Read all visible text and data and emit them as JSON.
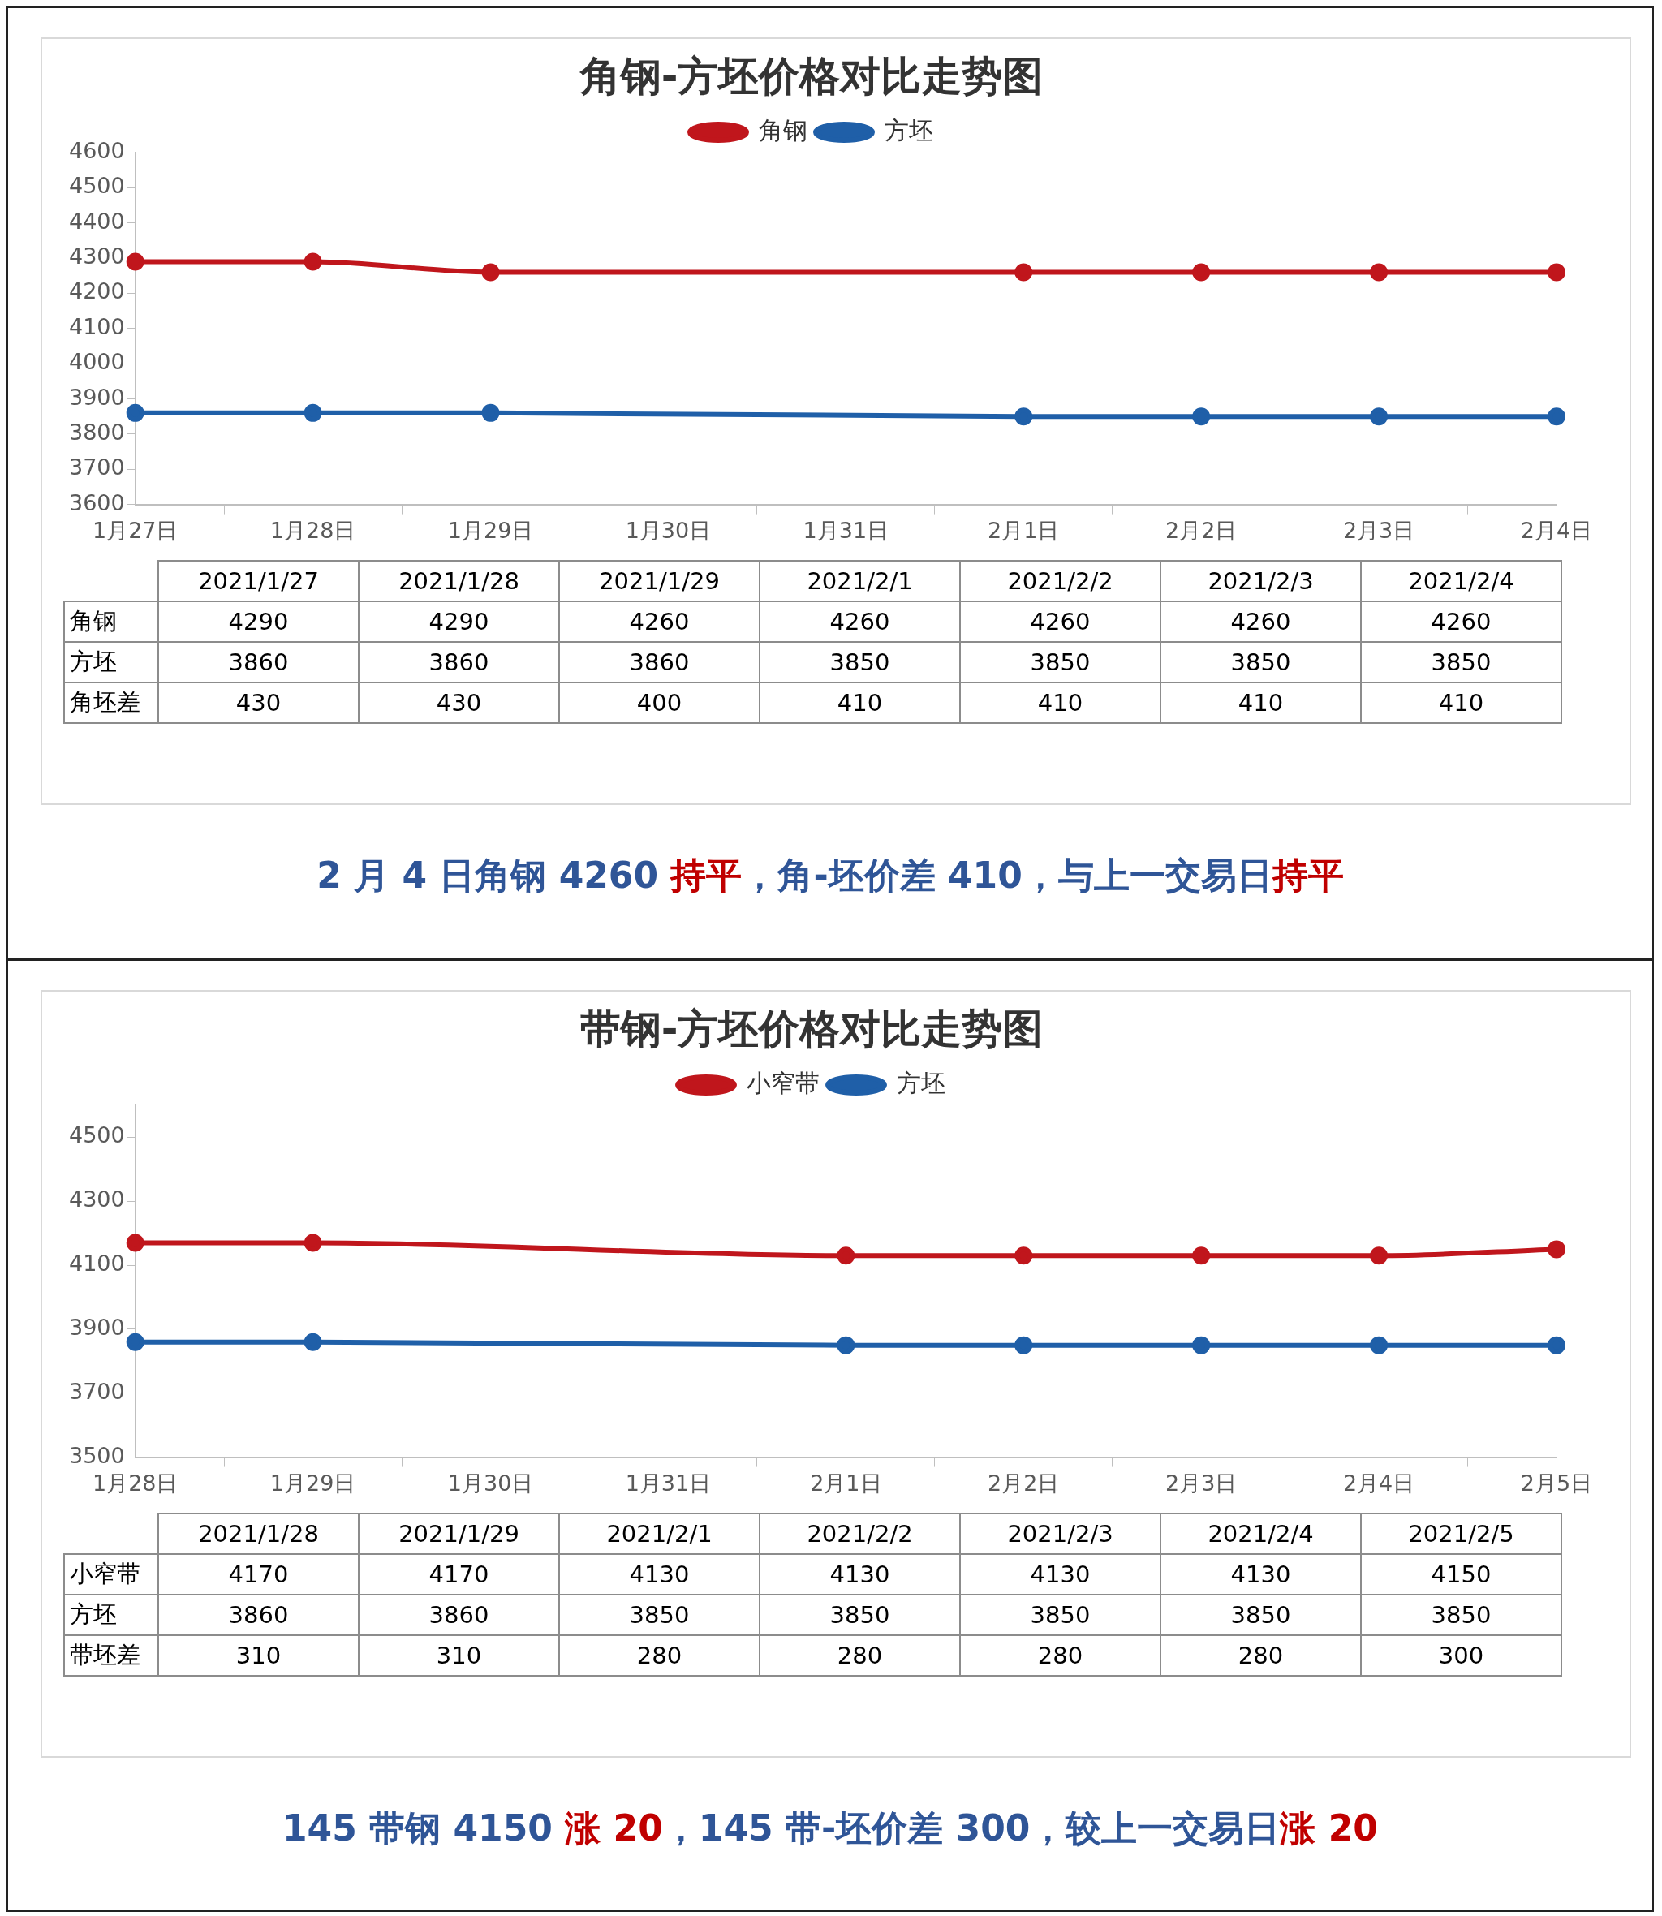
{
  "chart_data": [
    {
      "type": "line",
      "title": "角钢-方坯价格对比走势图",
      "categories": [
        "1月27日",
        "1月28日",
        "1月29日",
        "1月30日",
        "1月31日",
        "2月1日",
        "2月2日",
        "2月3日",
        "2月4日"
      ],
      "series": [
        {
          "name": "角钢",
          "color": "#c0161c",
          "values": [
            4290,
            4290,
            4260,
            null,
            null,
            4260,
            4260,
            4260,
            4260
          ]
        },
        {
          "name": "方坯",
          "color": "#1f5fa8",
          "values": [
            3860,
            3860,
            3860,
            null,
            null,
            3850,
            3850,
            3850,
            3850
          ]
        }
      ],
      "ylim": [
        3600,
        4600
      ],
      "yticks": [
        3600,
        3700,
        3800,
        3900,
        4000,
        4100,
        4200,
        4300,
        4400,
        4500,
        4600
      ],
      "grid": false,
      "legend": "top",
      "marker": "circle",
      "annotations": [
        "2021/1/27",
        "2021/1/28",
        "2021/1/29",
        "2021/2/1",
        "2021/2/2",
        "2021/2/3",
        "2021/2/4",
        "4290",
        "4290",
        "4260",
        "4260",
        "4260",
        "4260",
        "4260",
        "3860",
        "3860",
        "3860",
        "3850",
        "3850",
        "3850",
        "3850",
        "角坯差",
        "430",
        "430",
        "400",
        "410",
        "410",
        "410",
        "410",
        "2 月 4 日角钢 4260 ",
        "持平",
        "，角-坯价差 410，与上一交易日",
        "持平"
      ]
    },
    {
      "type": "line",
      "title": "带钢-方坯价格对比走势图",
      "categories": [
        "1月28日",
        "1月29日",
        "1月30日",
        "1月31日",
        "2月1日",
        "2月2日",
        "2月3日",
        "2月4日",
        "2月5日"
      ],
      "series": [
        {
          "name": "小窄带",
          "color": "#c0161c",
          "values": [
            4170,
            4170,
            null,
            null,
            4130,
            4130,
            4130,
            4130,
            4150
          ]
        },
        {
          "name": "方坯",
          "color": "#1f5fa8",
          "values": [
            3860,
            3860,
            null,
            null,
            3850,
            3850,
            3850,
            3850,
            3850
          ]
        }
      ],
      "ylim": [
        3500,
        4600
      ],
      "yticks": [
        3500,
        3700,
        3900,
        4100,
        4300,
        4500
      ],
      "grid": false,
      "legend": "top",
      "marker": "circle",
      "annotations": [
        "2021/1/28",
        "2021/1/29",
        "2021/2/1",
        "2021/2/2",
        "2021/2/3",
        "2021/2/4",
        "2021/2/5",
        "4170",
        "4170",
        "4130",
        "4130",
        "4130",
        "4130",
        "4150",
        "3860",
        "3860",
        "3850",
        "3850",
        "3850",
        "3850",
        "3850",
        "带坯差",
        "310",
        "310",
        "280",
        "280",
        "280",
        "280",
        "300",
        "145 带钢 4150 ",
        "涨 20",
        "，145 带-坯价差 300，较上一交易日",
        "涨 20"
      ]
    }
  ]
}
